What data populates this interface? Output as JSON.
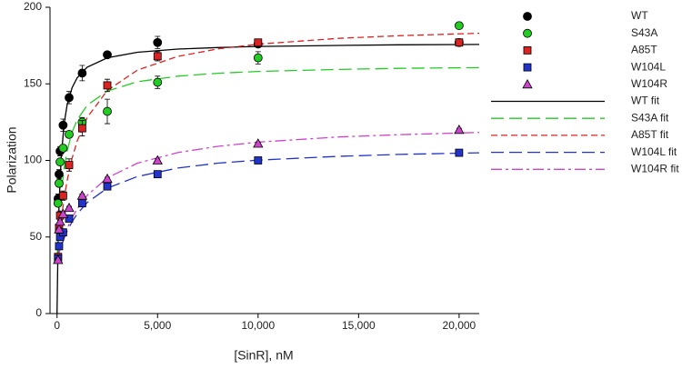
{
  "chart_data": {
    "type": "scatter",
    "x_label": "[SinR], nM",
    "y_label": "Polarization",
    "xlim": [
      -350,
      21000
    ],
    "ylim": [
      0,
      200
    ],
    "xticks": [
      0,
      {
        "value": 5000,
        "label": "5,000"
      },
      {
        "value": 10000,
        "label": "10,000"
      },
      {
        "value": 15000,
        "label": "15,000"
      },
      {
        "value": 20000,
        "label": "20,000"
      }
    ],
    "yticks": [
      0,
      50,
      100,
      150,
      200
    ],
    "series": [
      {
        "name": "WT",
        "color": "#000000",
        "marker": "circle",
        "x": [
          50,
          100,
          150,
          300,
          600,
          1250,
          2500,
          5000,
          10000,
          20000
        ],
        "values": [
          75,
          91,
          106,
          123,
          141,
          157,
          169,
          177,
          176,
          177
        ],
        "errors": [
          3,
          3,
          3,
          4,
          4,
          5,
          2,
          4,
          2,
          1
        ]
      },
      {
        "name": "S43A",
        "color": "#22cc22",
        "marker": "circle",
        "x": [
          50,
          100,
          150,
          300,
          600,
          1250,
          2500,
          5000,
          10000,
          20000
        ],
        "values": [
          72,
          85,
          99,
          108,
          117,
          125,
          132,
          151,
          167,
          188
        ],
        "errors": [
          2,
          2,
          2,
          2,
          2,
          3,
          8,
          4,
          4,
          1
        ]
      },
      {
        "name": "A85T",
        "color": "#dd2222",
        "marker": "square",
        "x": [
          50,
          100,
          150,
          300,
          600,
          1250,
          2500,
          5000,
          10000,
          20000
        ],
        "values": [
          37,
          56,
          64,
          77,
          97,
          121,
          149,
          168,
          177,
          177
        ],
        "errors": [
          2,
          2,
          3,
          3,
          4,
          5,
          4,
          3,
          2,
          1
        ]
      },
      {
        "name": "W104L",
        "color": "#2233cc",
        "marker": "square",
        "x": [
          50,
          100,
          150,
          300,
          600,
          1250,
          2500,
          5000,
          10000,
          20000
        ],
        "values": [
          36,
          44,
          50,
          53,
          62,
          72,
          83,
          91,
          100,
          105
        ],
        "errors": [
          1,
          1,
          1,
          1,
          1,
          1,
          1,
          1,
          1,
          1
        ]
      },
      {
        "name": "W104R",
        "color": "#cc44cc",
        "marker": "triangle",
        "x": [
          50,
          100,
          150,
          300,
          600,
          1250,
          2500,
          5000,
          10000,
          20000
        ],
        "values": [
          35,
          55,
          60,
          65,
          69,
          77,
          88,
          100,
          111,
          120
        ],
        "errors": [
          1,
          1,
          1,
          1,
          1,
          1,
          1,
          1,
          1,
          1
        ]
      }
    ],
    "fits": [
      {
        "name": "WT fit",
        "color": "#000000",
        "dash": "solid",
        "x": [
          0,
          50,
          100,
          200,
          350,
          500,
          750,
          1000,
          1500,
          2500,
          4000,
          6000,
          8000,
          10000,
          14000,
          17000,
          21000
        ],
        "values": [
          0,
          44.3,
          70.8,
          101.1,
          123.9,
          136.2,
          147.5,
          153.9,
          160.9,
          167.0,
          170.6,
          172.7,
          173.7,
          174.4,
          175.1,
          175.5,
          175.7
        ]
      },
      {
        "name": "S43A fit",
        "color": "#22cc22",
        "dash": "long",
        "x": [
          0,
          50,
          100,
          200,
          350,
          500,
          750,
          1000,
          1500,
          2500,
          4000,
          6000,
          8000,
          10000,
          14000,
          17000,
          21000
        ],
        "values": [
          35,
          49.2,
          60.6,
          77.7,
          94.7,
          106.1,
          118.5,
          126.4,
          136.1,
          145.3,
          151.4,
          155,
          156.9,
          158.1,
          159.4,
          160.1,
          160.6
        ]
      },
      {
        "name": "A85T fit",
        "color": "#dd2222",
        "dash": "short",
        "x": [
          0,
          50,
          100,
          200,
          350,
          500,
          750,
          1000,
          1500,
          2500,
          4000,
          6000,
          8000,
          10000,
          14000,
          17000,
          21000
        ],
        "values": [
          35,
          42.4,
          49.1,
          60.8,
          75.2,
          86.7,
          101.4,
          112.5,
          128,
          145.7,
          159,
          167.9,
          172.8,
          175.9,
          179.7,
          181.4,
          183
        ]
      },
      {
        "name": "W104L fit",
        "color": "#2233cc",
        "dash": "long",
        "x": [
          0,
          50,
          100,
          200,
          350,
          500,
          750,
          1000,
          1500,
          2500,
          4000,
          6000,
          8000,
          10000,
          14000,
          17000,
          21000
        ],
        "values": [
          35,
          37.4,
          39.7,
          43.8,
          49.2,
          53.8,
          60,
          65,
          72.5,
          81.9,
          89.5,
          95,
          98.2,
          100.2,
          102.7,
          103.9,
          105
        ]
      },
      {
        "name": "W104R fit",
        "color": "#cc44cc",
        "dash": "dashdot",
        "x": [
          0,
          50,
          100,
          200,
          350,
          500,
          750,
          1000,
          1500,
          2500,
          4000,
          6000,
          8000,
          10000,
          14000,
          17000,
          21000
        ],
        "values": [
          35,
          37.6,
          40,
          44.5,
          50.4,
          55.5,
          62.6,
          68.3,
          77.2,
          88.6,
          98.2,
          105.1,
          109.2,
          111.9,
          115.3,
          116.8,
          118.3
        ]
      }
    ]
  }
}
